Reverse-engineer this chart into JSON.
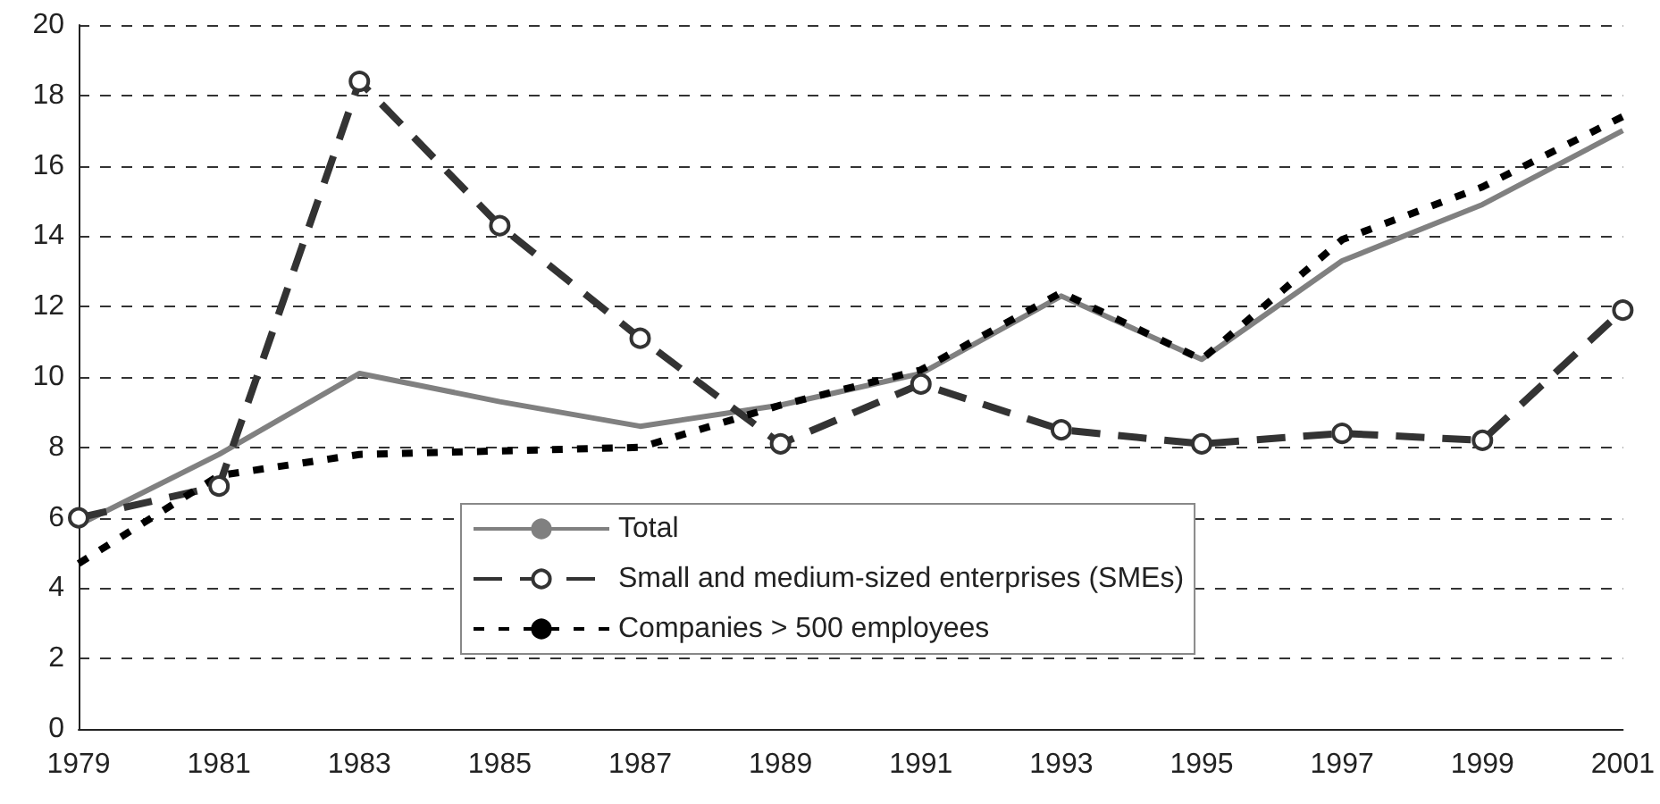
{
  "chart_data": {
    "type": "line",
    "categories": [
      "1979",
      "1981",
      "1983",
      "1985",
      "1987",
      "1989",
      "1991",
      "1993",
      "1995",
      "1997",
      "1999",
      "2001"
    ],
    "series": [
      {
        "name": "Total",
        "color": "#808080",
        "line_style": "solid",
        "marker": "none",
        "values": [
          5.8,
          7.8,
          10.1,
          9.3,
          8.6,
          9.2,
          10.1,
          12.3,
          10.5,
          13.3,
          14.9,
          17.0
        ]
      },
      {
        "name": "Small and medium-sized enterprises (SMEs)",
        "color": "#333333",
        "line_style": "dashed",
        "marker": "circle",
        "values": [
          6.0,
          6.9,
          18.4,
          14.3,
          11.1,
          8.1,
          9.8,
          8.5,
          8.1,
          8.4,
          8.2,
          11.9
        ]
      },
      {
        "name": "Companies > 500 employees",
        "color": "#000000",
        "line_style": "dotted",
        "marker": "none",
        "values": [
          4.7,
          7.2,
          7.8,
          7.9,
          8.0,
          9.2,
          10.2,
          12.4,
          10.5,
          13.9,
          15.4,
          17.4
        ]
      }
    ],
    "ylim": [
      0,
      20
    ],
    "yticks": [
      0,
      2,
      4,
      6,
      8,
      10,
      12,
      14,
      16,
      18,
      20
    ],
    "grid": "y",
    "legend": "bottom"
  }
}
